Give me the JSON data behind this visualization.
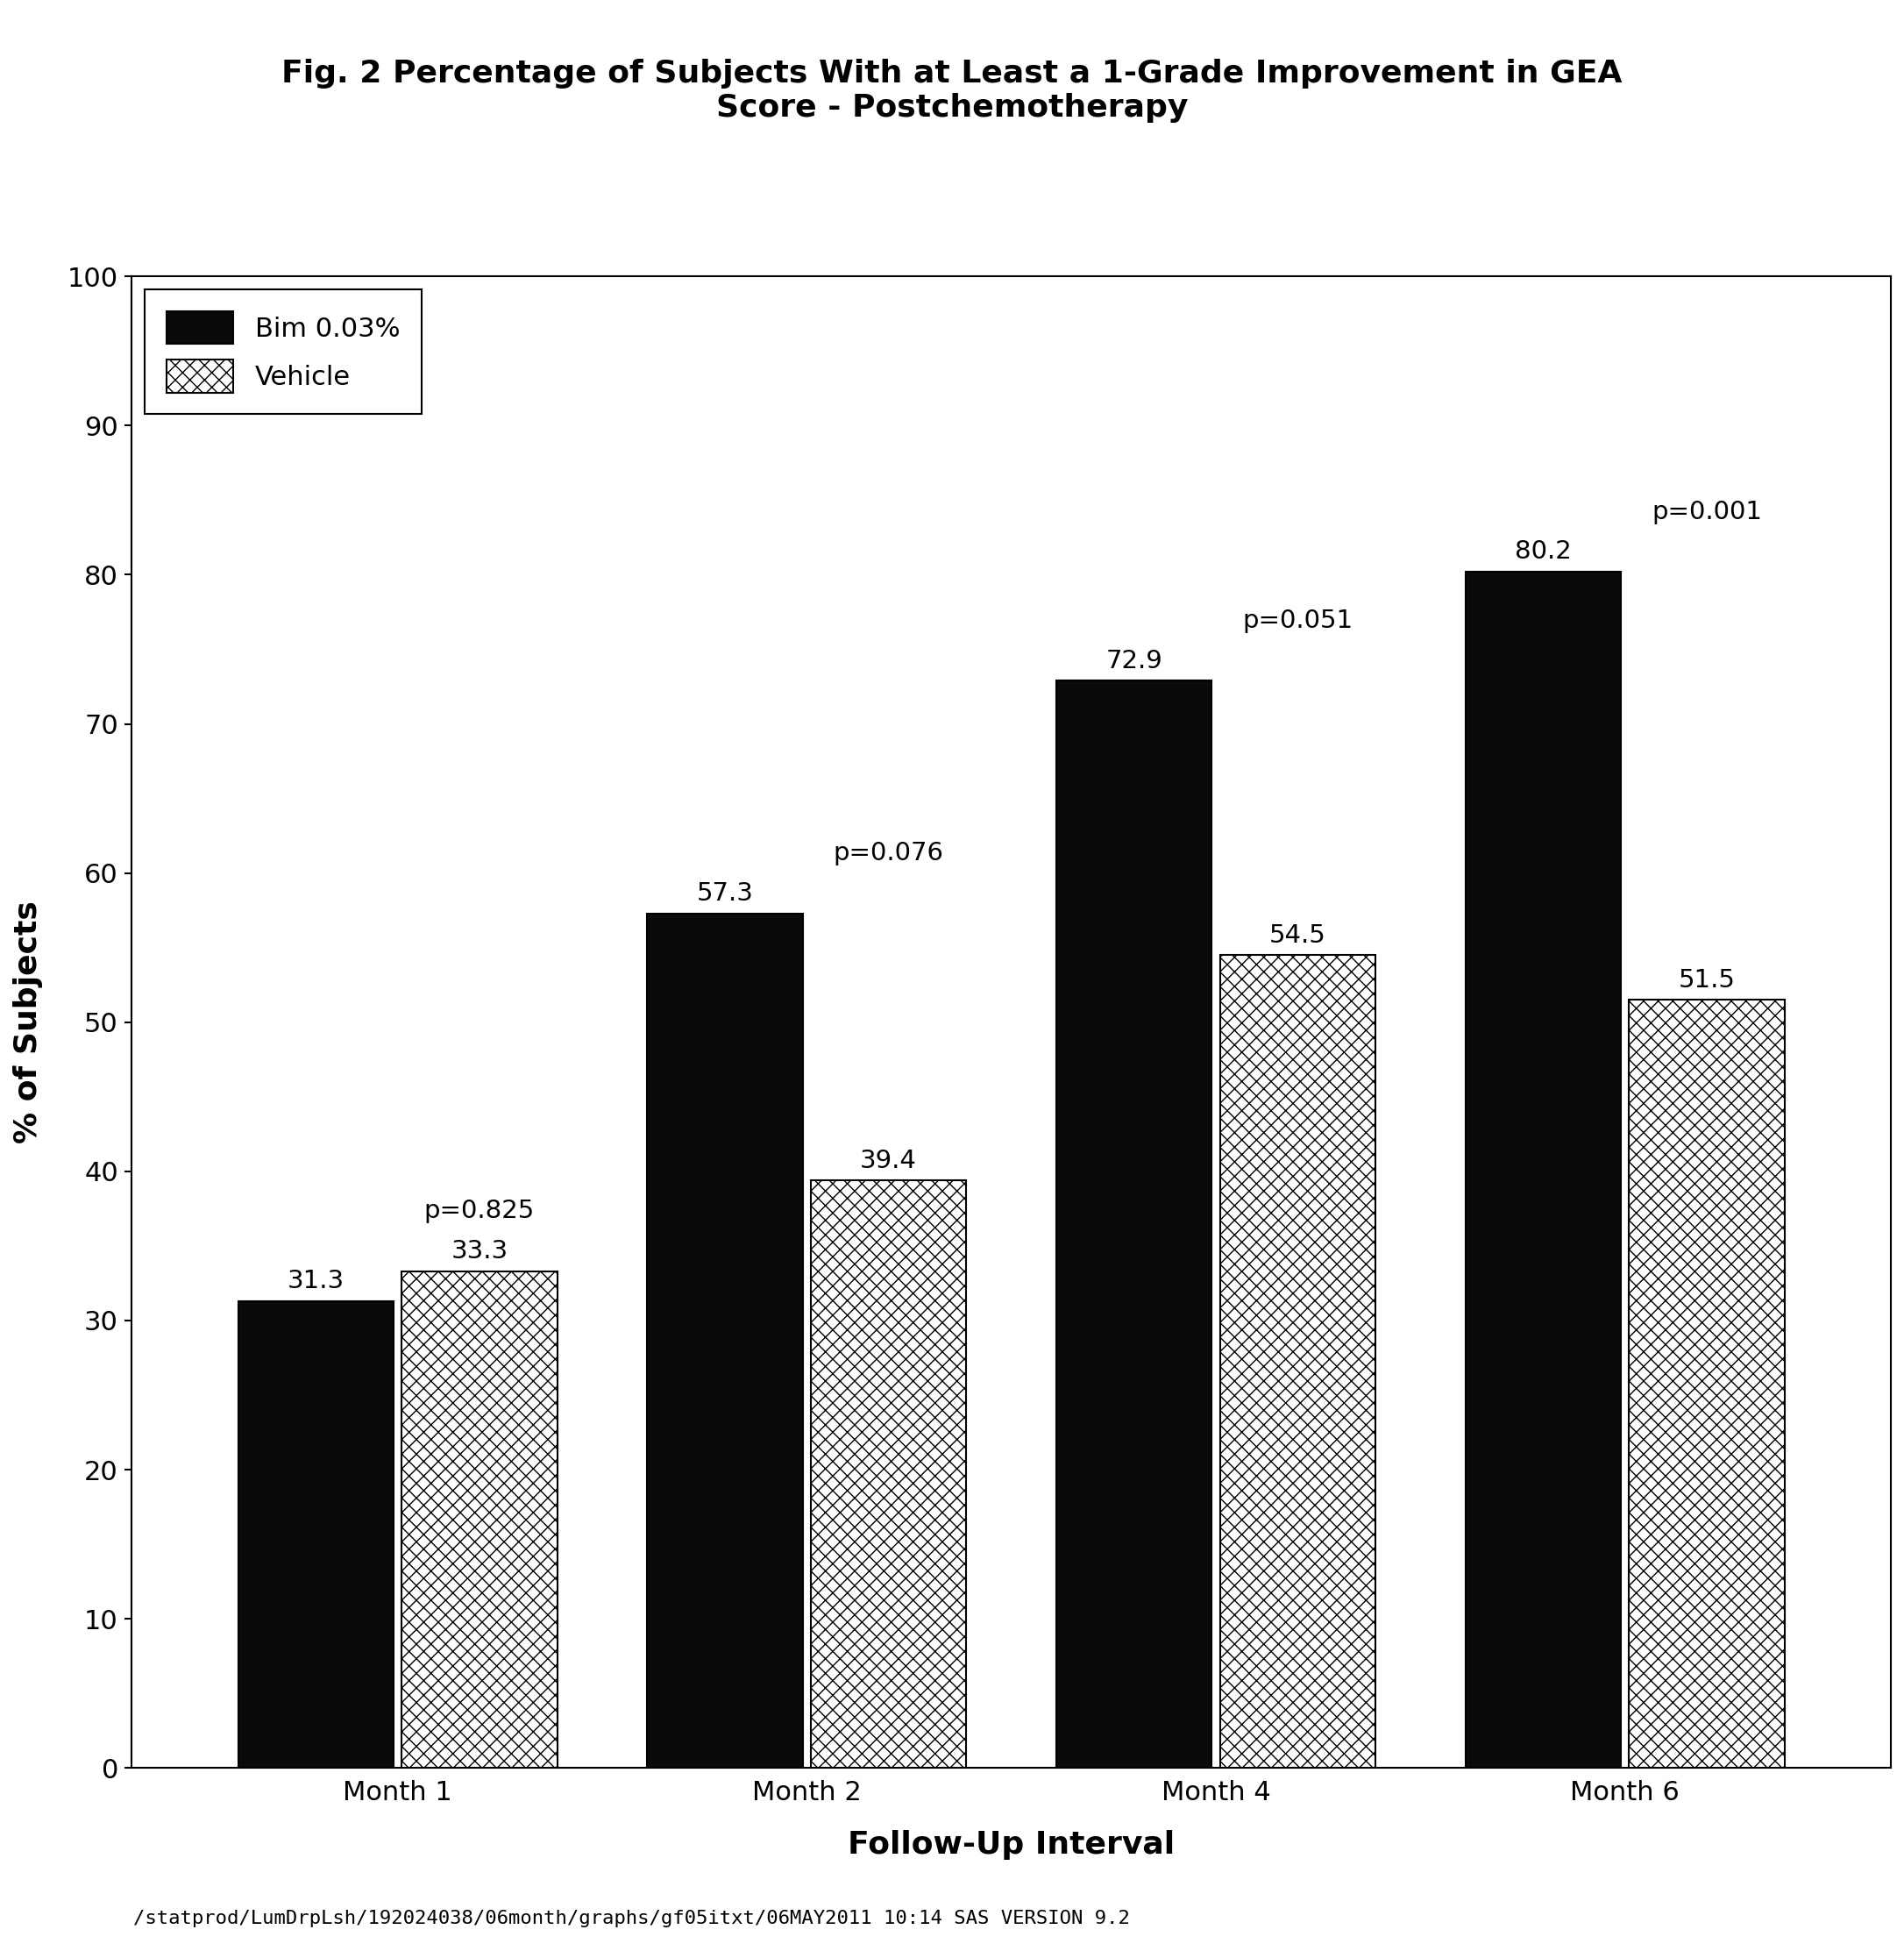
{
  "title_line1": "Fig. 2 Percentage of Subjects With at Least a 1-Grade Improvement in GEA",
  "title_line2": "Score - Postchemotherapy",
  "xlabel": "Follow-Up Interval",
  "ylabel": "% of Subjects",
  "footer": "/statprod/LumDrpLsh/192024038/06month/graphs/gf05itxt/06MAY2011 10:14 SAS VERSION 9.2",
  "categories": [
    "Month 1",
    "Month 2",
    "Month 4",
    "Month 6"
  ],
  "bim_values": [
    31.3,
    57.3,
    72.9,
    80.2
  ],
  "vehicle_values": [
    33.3,
    39.4,
    54.5,
    51.5
  ],
  "p_values": [
    "p=0.825",
    "p=0.076",
    "p=0.051",
    "p=0.001"
  ],
  "ylim": [
    0,
    100
  ],
  "yticks": [
    0,
    10,
    20,
    30,
    40,
    50,
    60,
    70,
    80,
    90,
    100
  ],
  "legend_bim_label": "Bim 0.03%",
  "legend_vehicle_label": "Vehicle",
  "bar_width": 0.38,
  "bar_gap": 0.02,
  "bim_color": "#0a0a0a",
  "vehicle_facecolor": "#ffffff",
  "background_color": "#ffffff",
  "title_fontsize": 26,
  "axis_label_fontsize": 26,
  "tick_fontsize": 22,
  "legend_fontsize": 22,
  "bar_label_fontsize": 21,
  "pvalue_fontsize": 21,
  "footer_fontsize": 16
}
